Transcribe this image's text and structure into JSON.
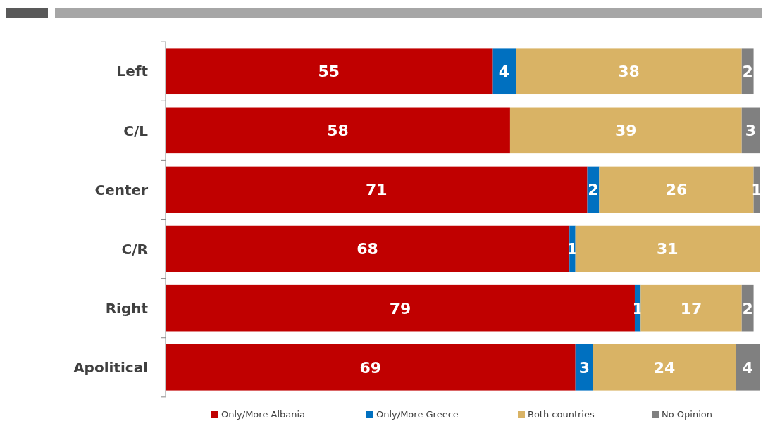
{
  "chart_data": {
    "type": "bar",
    "orientation": "horizontal",
    "stacked": true,
    "data_labels": true,
    "legend": "bottom",
    "tick_labels": "y",
    "xlim": [
      0,
      100
    ],
    "categories": [
      "Left",
      "C/L",
      "Center",
      "C/R",
      "Right",
      "Apolitical"
    ],
    "series": [
      {
        "name": "Only/More Albania",
        "color": "#c00000",
        "values": [
          55,
          58,
          71,
          68,
          79,
          69
        ]
      },
      {
        "name": "Only/More Greece",
        "color": "#0070c0",
        "values": [
          4,
          null,
          2,
          1,
          1,
          3
        ]
      },
      {
        "name": "Both countries",
        "color": "#d9b365",
        "values": [
          38,
          39,
          26,
          31,
          17,
          24
        ]
      },
      {
        "name": "No Opinion",
        "color": "#808080",
        "values": [
          2,
          3,
          1,
          null,
          2,
          4
        ]
      }
    ]
  }
}
